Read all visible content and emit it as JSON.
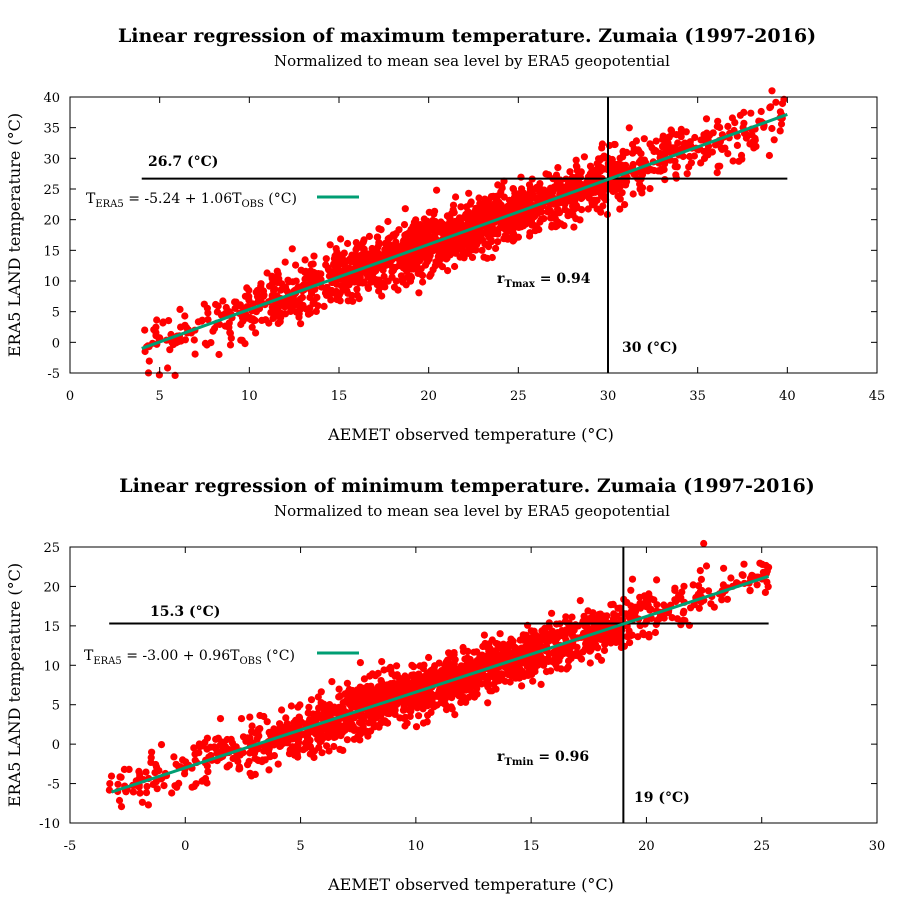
{
  "chart_data": [
    {
      "type": "scatter",
      "title": "Linear regression of maximum temperature. Zumaia (1997-2016)",
      "subtitle": "Normalized to mean sea level by ERA5 geopotential",
      "xlabel": "AEMET observed temperature (°C)",
      "ylabel": "ERA5 LAND temperature (°C)",
      "xlim": [
        0,
        45
      ],
      "ylim": [
        -5,
        40
      ],
      "xticks": [
        "0",
        "5",
        "10",
        "15",
        "20",
        "25",
        "30",
        "35",
        "40",
        "45"
      ],
      "yticks": [
        "-5",
        "0",
        "5",
        "10",
        "15",
        "20",
        "25",
        "30",
        "35",
        "40"
      ],
      "point_color": "#ff0000",
      "line_color": "#009e73",
      "fit": {
        "intercept": -5.24,
        "slope": 1.06,
        "x_range": [
          4,
          40
        ]
      },
      "point_cloud": {
        "x_range": [
          4,
          40
        ],
        "spread": 2.2
      },
      "threshold_line": {
        "y": 26.7,
        "x_range": [
          4,
          40
        ],
        "label": "26.7 (°C)"
      },
      "threshold_vline": {
        "x": 30,
        "label": "30 (°C)"
      },
      "equation": {
        "main": "T",
        "sub1": "ERA5",
        "middle": " = -5.24 + 1.06T",
        "sub2": "OBS",
        "tail": " (°C)"
      },
      "correlation": {
        "main": "r",
        "sub": "Tmax",
        "tail": " = 0.94"
      }
    },
    {
      "type": "scatter",
      "title": "Linear regression of minimum temperature. Zumaia (1997-2016)",
      "subtitle": "Normalized to mean sea level by ERA5 geopotential",
      "xlabel": "AEMET observed temperature (°C)",
      "ylabel": "ERA5 LAND temperature (°C)",
      "xlim": [
        -5,
        30
      ],
      "ylim": [
        -10,
        25
      ],
      "xticks": [
        "-5",
        "0",
        "5",
        "10",
        "15",
        "20",
        "25",
        "30"
      ],
      "yticks": [
        "-10",
        "-5",
        "0",
        "5",
        "10",
        "15",
        "20",
        "25"
      ],
      "point_color": "#ff0000",
      "line_color": "#009e73",
      "fit": {
        "intercept": -3.0,
        "slope": 0.96,
        "x_range": [
          -3.2,
          25.3
        ]
      },
      "point_cloud": {
        "x_range": [
          -3.3,
          25.3
        ],
        "spread": 1.6
      },
      "threshold_line": {
        "y": 15.3,
        "x_range": [
          -3.3,
          25.3
        ],
        "label": "15.3 (°C)"
      },
      "threshold_vline": {
        "x": 19,
        "label": "19 (°C)"
      },
      "equation": {
        "main": "T",
        "sub1": "ERA5",
        "middle": " = -3.00 + 0.96T",
        "sub2": "OBS",
        "tail": " (°C)"
      },
      "correlation": {
        "main": "r",
        "sub": "Tmin",
        "tail": " = 0.96"
      }
    }
  ]
}
